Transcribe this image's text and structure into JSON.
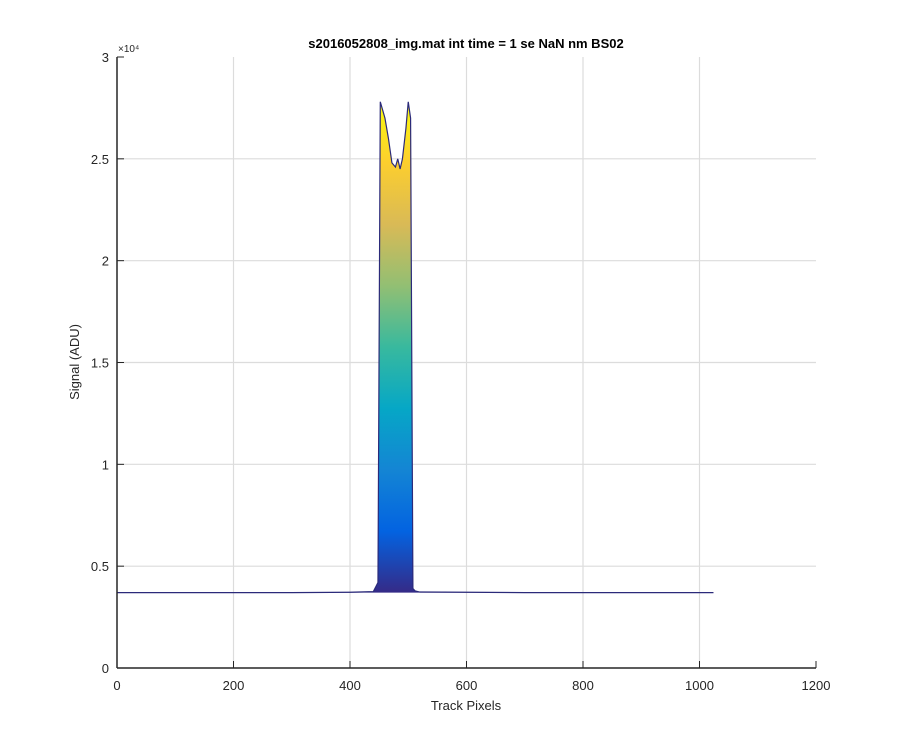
{
  "chart_data": {
    "type": "area",
    "title": "s2016052808_img.mat int time = 1 se  NaN nm BS02",
    "xlabel": "Track Pixels",
    "ylabel": "Signal (ADU)",
    "xlim": [
      0,
      1200
    ],
    "ylim": [
      0,
      30000
    ],
    "y_exponent_label": "×10⁴",
    "x_ticks": [
      0,
      200,
      400,
      600,
      800,
      1000,
      1200
    ],
    "x_tick_labels": [
      "0",
      "200",
      "400",
      "600",
      "800",
      "1000",
      "1200"
    ],
    "y_ticks": [
      0,
      5000,
      10000,
      15000,
      20000,
      25000,
      30000
    ],
    "y_tick_labels": [
      "0",
      "0.5",
      "1",
      "1.5",
      "2",
      "2.5",
      "3"
    ],
    "grid": true,
    "colormap": "parula",
    "colormap_stops": [
      "#352a87",
      "#0363e1",
      "#1485d4",
      "#06a7c6",
      "#38b99e",
      "#92bf73",
      "#d9ba56",
      "#fcce2e",
      "#f9fb0e"
    ],
    "baseline_color": "#2b2a7a",
    "series": [
      {
        "x": [
          0,
          100,
          200,
          300,
          400,
          440,
          448,
          452,
          456,
          460,
          466,
          472,
          478,
          482,
          486,
          490,
          496,
          500,
          504,
          508,
          512,
          520,
          600,
          700,
          800,
          900,
          1000,
          1024
        ],
        "y": [
          3700,
          3700,
          3700,
          3700,
          3720,
          3750,
          4200,
          27800,
          27400,
          27000,
          26000,
          24800,
          24600,
          25000,
          24500,
          25000,
          26500,
          27800,
          27000,
          3900,
          3780,
          3730,
          3720,
          3700,
          3700,
          3700,
          3700,
          3700
        ]
      }
    ]
  }
}
